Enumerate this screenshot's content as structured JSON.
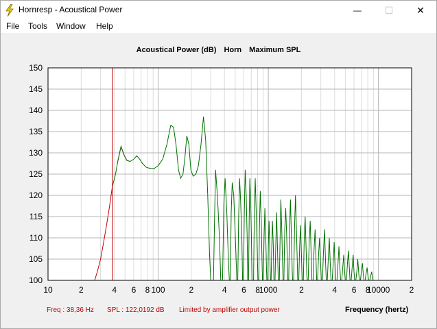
{
  "window": {
    "title": "Hornresp - Acoustical Power",
    "minimize_glyph": "—",
    "maximize_glyph": "☐",
    "close_glyph": "✕"
  },
  "menu": [
    "File",
    "Tools",
    "Window",
    "Help"
  ],
  "chart_header": {
    "part1": "Acoustical Power (dB)",
    "part2": "Horn",
    "part3": "Maximum SPL"
  },
  "readout": {
    "freq": "Freq : 38,36 Hz",
    "spl": "SPL : 122,0192 dB",
    "note": "Limited by amplifier output power"
  },
  "x_axis_label": "Frequency (hertz)",
  "colors": {
    "limited_curve": "#c00000",
    "normal_curve": "#007000",
    "cursor": "#c00000",
    "grid_major": "#b4b4b4",
    "grid_minor": "#dcdcdc"
  },
  "chart_data": {
    "type": "line",
    "x_scale": "log",
    "xlim": [
      10,
      20000
    ],
    "ylim": [
      100,
      150
    ],
    "y_ticks": [
      100,
      105,
      110,
      115,
      120,
      125,
      130,
      135,
      140,
      145,
      150
    ],
    "x_tick_labels": [
      {
        "f": 10,
        "t": "10"
      },
      {
        "f": 20,
        "t": "2"
      },
      {
        "f": 40,
        "t": "4"
      },
      {
        "f": 60,
        "t": "6"
      },
      {
        "f": 80,
        "t": "8"
      },
      {
        "f": 100,
        "t": "100"
      },
      {
        "f": 200,
        "t": "2"
      },
      {
        "f": 400,
        "t": "4"
      },
      {
        "f": 600,
        "t": "6"
      },
      {
        "f": 800,
        "t": "8"
      },
      {
        "f": 1000,
        "t": "1000"
      },
      {
        "f": 2000,
        "t": "2"
      },
      {
        "f": 4000,
        "t": "4"
      },
      {
        "f": 6000,
        "t": "6"
      },
      {
        "f": 8000,
        "t": "8"
      },
      {
        "f": 10000,
        "t": "10000"
      },
      {
        "f": 20000,
        "t": "2"
      }
    ],
    "cursor_freq": 38.36,
    "series": [
      {
        "color": "red",
        "points": [
          [
            26.5,
            100
          ],
          [
            28,
            102
          ],
          [
            30,
            105
          ],
          [
            32,
            109
          ],
          [
            34,
            113
          ],
          [
            36,
            117
          ],
          [
            38.36,
            122
          ]
        ]
      },
      {
        "color": "red",
        "points": [
          [
            43,
            128
          ],
          [
            46,
            131.5
          ],
          [
            49,
            129.5
          ],
          [
            52,
            128.2
          ],
          [
            55,
            128
          ]
        ]
      },
      {
        "color": "green",
        "points": [
          [
            38.36,
            122
          ],
          [
            41,
            125
          ],
          [
            43,
            128
          ],
          [
            46,
            131.5
          ],
          [
            49,
            129.5
          ],
          [
            52,
            128.2
          ],
          [
            56,
            128
          ],
          [
            60,
            128.5
          ],
          [
            64,
            129.3
          ],
          [
            68,
            128.5
          ],
          [
            72,
            127.5
          ],
          [
            78,
            126.6
          ],
          [
            85,
            126.3
          ],
          [
            92,
            126.3
          ],
          [
            100,
            127
          ],
          [
            110,
            128.5
          ],
          [
            120,
            132
          ],
          [
            130,
            136.5
          ],
          [
            138,
            136
          ],
          [
            145,
            132
          ],
          [
            153,
            126
          ],
          [
            160,
            124
          ],
          [
            168,
            125
          ],
          [
            175,
            129
          ],
          [
            182,
            134
          ],
          [
            190,
            132
          ],
          [
            198,
            126
          ],
          [
            208,
            124.5
          ],
          [
            220,
            125
          ],
          [
            232,
            127
          ],
          [
            245,
            132
          ],
          [
            258,
            138.5
          ],
          [
            270,
            133
          ],
          [
            282,
            120
          ],
          [
            293,
            106
          ],
          [
            300,
            100
          ],
          [
            318,
            100
          ],
          [
            325,
            114
          ],
          [
            332,
            126
          ],
          [
            345,
            120
          ],
          [
            360,
            110
          ],
          [
            370,
            100
          ],
          [
            384,
            100
          ],
          [
            395,
            118
          ],
          [
            405,
            124
          ],
          [
            420,
            116
          ],
          [
            435,
            104
          ],
          [
            443,
            100
          ],
          [
            452,
            100
          ],
          [
            460,
            116
          ],
          [
            470,
            123
          ],
          [
            485,
            120
          ],
          [
            502,
            110
          ],
          [
            512,
            104
          ],
          [
            518,
            100
          ],
          [
            528,
            100
          ],
          [
            537,
            114
          ],
          [
            548,
            124
          ],
          [
            560,
            119
          ],
          [
            575,
            110
          ],
          [
            584,
            100
          ],
          [
            595,
            100
          ],
          [
            605,
            116
          ],
          [
            617,
            126
          ],
          [
            630,
            120
          ],
          [
            643,
            110
          ],
          [
            650,
            100
          ],
          [
            662,
            100
          ],
          [
            670,
            114
          ],
          [
            680,
            124
          ],
          [
            693,
            118
          ],
          [
            705,
            108
          ],
          [
            712,
            100
          ],
          [
            735,
            100
          ],
          [
            745,
            114
          ],
          [
            760,
            124
          ],
          [
            777,
            116
          ],
          [
            795,
            106
          ],
          [
            805,
            100
          ],
          [
            820,
            100
          ],
          [
            830,
            112
          ],
          [
            845,
            121
          ],
          [
            862,
            114
          ],
          [
            878,
            104
          ],
          [
            885,
            100
          ],
          [
            900,
            100
          ],
          [
            915,
            110
          ],
          [
            930,
            117
          ],
          [
            948,
            110
          ],
          [
            962,
            103
          ],
          [
            970,
            100
          ],
          [
            990,
            100
          ],
          [
            1000,
            108
          ],
          [
            1015,
            114
          ],
          [
            1030,
            108
          ],
          [
            1045,
            100
          ],
          [
            1060,
            100
          ],
          [
            1075,
            108
          ],
          [
            1090,
            114
          ],
          [
            1110,
            108
          ],
          [
            1125,
            100
          ],
          [
            1150,
            100
          ],
          [
            1170,
            109
          ],
          [
            1190,
            116
          ],
          [
            1210,
            108
          ],
          [
            1230,
            101
          ],
          [
            1240,
            100
          ],
          [
            1260,
            100
          ],
          [
            1280,
            110
          ],
          [
            1300,
            119
          ],
          [
            1325,
            112
          ],
          [
            1348,
            104
          ],
          [
            1360,
            100
          ],
          [
            1385,
            100
          ],
          [
            1410,
            112
          ],
          [
            1440,
            117
          ],
          [
            1470,
            110
          ],
          [
            1495,
            102
          ],
          [
            1505,
            100
          ],
          [
            1530,
            100
          ],
          [
            1560,
            112
          ],
          [
            1590,
            119
          ],
          [
            1620,
            110
          ],
          [
            1650,
            102
          ],
          [
            1660,
            100
          ],
          [
            1700,
            100
          ],
          [
            1730,
            112
          ],
          [
            1765,
            120
          ],
          [
            1800,
            112
          ],
          [
            1835,
            104
          ],
          [
            1850,
            100
          ],
          [
            1890,
            100
          ],
          [
            1925,
            108
          ],
          [
            1960,
            113
          ],
          [
            2000,
            106
          ],
          [
            2030,
            100
          ],
          [
            2080,
            100
          ],
          [
            2120,
            110
          ],
          [
            2160,
            115
          ],
          [
            2200,
            108
          ],
          [
            2240,
            101
          ],
          [
            2260,
            100
          ],
          [
            2300,
            100
          ],
          [
            2350,
            109
          ],
          [
            2400,
            114
          ],
          [
            2450,
            106
          ],
          [
            2490,
            100
          ],
          [
            2550,
            100
          ],
          [
            2600,
            107
          ],
          [
            2660,
            112
          ],
          [
            2710,
            105
          ],
          [
            2750,
            100
          ],
          [
            2800,
            100
          ],
          [
            2860,
            106
          ],
          [
            2920,
            110
          ],
          [
            2980,
            104
          ],
          [
            3030,
            100
          ],
          [
            3100,
            100
          ],
          [
            3170,
            107
          ],
          [
            3240,
            112
          ],
          [
            3300,
            105
          ],
          [
            3360,
            100
          ],
          [
            3430,
            100
          ],
          [
            3500,
            105
          ],
          [
            3580,
            110
          ],
          [
            3650,
            104
          ],
          [
            3710,
            100
          ],
          [
            3800,
            100
          ],
          [
            3880,
            104
          ],
          [
            3960,
            109
          ],
          [
            4040,
            103
          ],
          [
            4100,
            100
          ],
          [
            4200,
            100
          ],
          [
            4290,
            104
          ],
          [
            4380,
            108
          ],
          [
            4460,
            103
          ],
          [
            4530,
            100
          ],
          [
            4640,
            100
          ],
          [
            4740,
            103
          ],
          [
            4840,
            106
          ],
          [
            4930,
            102
          ],
          [
            5000,
            100
          ],
          [
            5120,
            100
          ],
          [
            5230,
            104
          ],
          [
            5340,
            107
          ],
          [
            5440,
            103
          ],
          [
            5520,
            100
          ],
          [
            5650,
            100
          ],
          [
            5770,
            103
          ],
          [
            5890,
            106
          ],
          [
            6000,
            102
          ],
          [
            6090,
            100
          ],
          [
            6230,
            100
          ],
          [
            6360,
            102
          ],
          [
            6490,
            105
          ],
          [
            6610,
            102
          ],
          [
            6710,
            100
          ],
          [
            6860,
            100
          ],
          [
            7000,
            102
          ],
          [
            7150,
            104
          ],
          [
            7280,
            101.5
          ],
          [
            7390,
            100
          ],
          [
            7560,
            100
          ],
          [
            7720,
            101.5
          ],
          [
            7880,
            103
          ],
          [
            8030,
            101
          ],
          [
            8150,
            100
          ],
          [
            8330,
            100
          ],
          [
            8500,
            101
          ],
          [
            8680,
            102
          ],
          [
            8840,
            100.5
          ],
          [
            8960,
            100
          ]
        ]
      }
    ]
  }
}
